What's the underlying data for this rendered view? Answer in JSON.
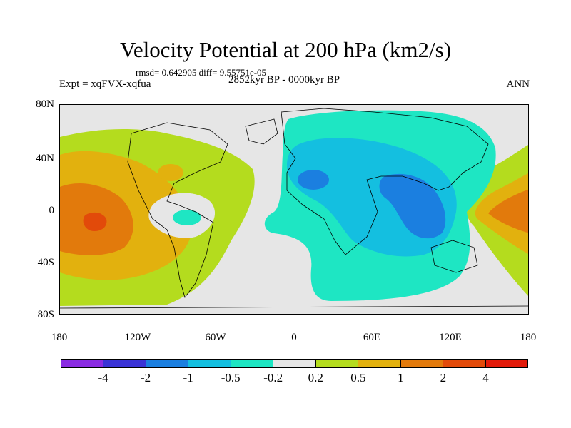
{
  "title": "Velocity Potential at 200 hPa (km2/s)",
  "stats": "rmsd= 0.642905 diff= 9.55751e-05",
  "expt": "Expt = xqFVX-xqfua",
  "period": "2852kyr BP - 0000kyr BP",
  "season": "ANN",
  "y_axis": [
    "80N",
    "40N",
    "0",
    "40S",
    "80S"
  ],
  "x_axis": [
    "180",
    "120W",
    "60W",
    "0",
    "60E",
    "120E",
    "180"
  ],
  "colorbar": {
    "labels": [
      "-4",
      "-2",
      "-1",
      "-0.5",
      "-0.2",
      "0.2",
      "0.5",
      "1",
      "2",
      "4"
    ],
    "colors": [
      "#8a2be2",
      "#3a33d6",
      "#1b7fe0",
      "#14bfe0",
      "#1ee6c3",
      "#e6e6e6",
      "#b4dc1e",
      "#e2b10e",
      "#e27a0c",
      "#e24a0a",
      "#e21a0a"
    ]
  }
}
